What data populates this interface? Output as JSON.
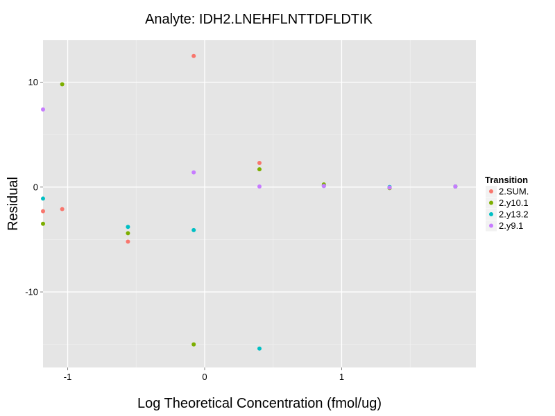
{
  "chart_data": {
    "type": "scatter",
    "title": "Analyte: IDH2.LNEHFLNTTDFLDTIK",
    "xlabel": "Log Theoretical Concentration (fmol/ug)",
    "ylabel": "Residual",
    "xlim": [
      -1.18,
      1.98
    ],
    "ylim": [
      -17.2,
      14.0
    ],
    "x_ticks": [
      -1,
      0,
      1
    ],
    "x_tick_labels": [
      "-1",
      "0",
      "1"
    ],
    "y_ticks": [
      -10,
      0,
      10
    ],
    "y_tick_labels": [
      "-10",
      "0",
      "10"
    ],
    "grid": true,
    "legend_title": "Transition",
    "legend_position": "right",
    "series": [
      {
        "name": "2.SUM.",
        "color": "#F8766D",
        "points": [
          {
            "x": -1.18,
            "y": -2.3
          },
          {
            "x": -1.04,
            "y": -2.1
          },
          {
            "x": -0.56,
            "y": -5.2
          },
          {
            "x": -0.08,
            "y": 12.5
          },
          {
            "x": 0.4,
            "y": 2.3
          },
          {
            "x": 0.87,
            "y": 0.15
          },
          {
            "x": 1.35,
            "y": -0.05
          },
          {
            "x": 1.83,
            "y": 0.05
          }
        ]
      },
      {
        "name": "2.y10.1",
        "color": "#7CAE00",
        "points": [
          {
            "x": -1.18,
            "y": -3.5
          },
          {
            "x": -1.04,
            "y": 9.8
          },
          {
            "x": -0.56,
            "y": -4.4
          },
          {
            "x": -0.08,
            "y": -15.0
          },
          {
            "x": 0.4,
            "y": 1.7
          },
          {
            "x": 0.87,
            "y": 0.25
          },
          {
            "x": 1.35,
            "y": -0.1
          },
          {
            "x": 1.83,
            "y": 0.05
          }
        ]
      },
      {
        "name": "2.y13.2",
        "color": "#00BFC4",
        "points": [
          {
            "x": -1.18,
            "y": -1.1
          },
          {
            "x": -0.56,
            "y": -3.8
          },
          {
            "x": -0.08,
            "y": -4.1
          },
          {
            "x": 0.4,
            "y": -15.4
          },
          {
            "x": 0.87,
            "y": 0.1
          },
          {
            "x": 1.35,
            "y": 0.0
          },
          {
            "x": 1.83,
            "y": 0.05
          }
        ]
      },
      {
        "name": "2.y9.1",
        "color": "#C77CFF",
        "points": [
          {
            "x": -1.18,
            "y": 7.4
          },
          {
            "x": -0.08,
            "y": 1.4
          },
          {
            "x": 0.4,
            "y": 0.05
          },
          {
            "x": 0.87,
            "y": 0.1
          },
          {
            "x": 1.35,
            "y": -0.05
          },
          {
            "x": 1.83,
            "y": 0.05
          }
        ]
      }
    ]
  }
}
